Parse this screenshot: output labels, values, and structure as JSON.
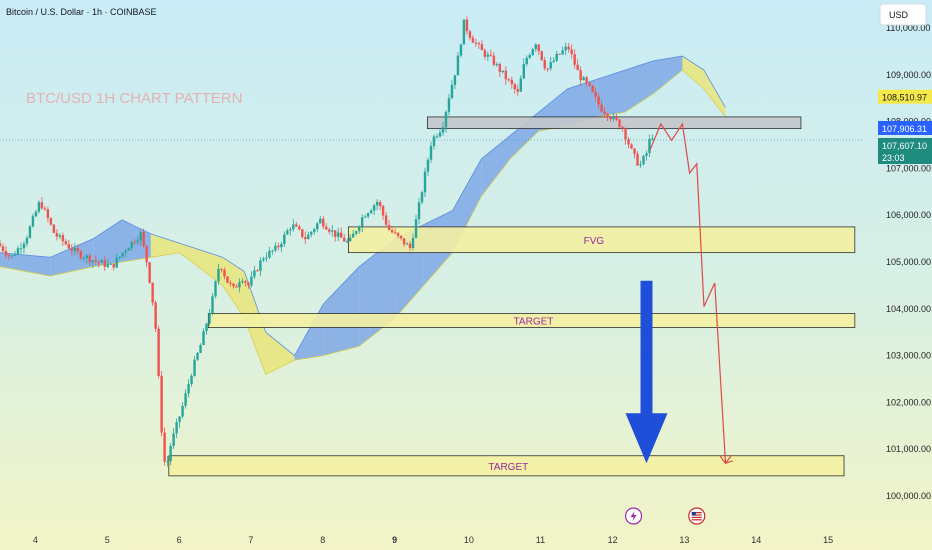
{
  "header": {
    "title": "Bitcoin / U.S. Dollar · 1h · COINBASE"
  },
  "currency_button": {
    "label": "USD"
  },
  "watermark": {
    "text": "BTC/USD 1H CHART PATTERN"
  },
  "colors": {
    "bull": "#26a69a",
    "bear": "#ef5350",
    "cloud_bull": "#7fa8e6",
    "cloud_bear": "#e9e57a",
    "arrow": "#1f4fd8",
    "projection": "#e0484a",
    "zone_fill": "#f4f1a3",
    "resistance_fill": "#c4c7cc",
    "badge_yellow": "#f5e94a",
    "badge_blue": "#2962ff",
    "badge_teal": "#1f8a7e"
  },
  "chart_data": {
    "type": "candlestick",
    "symbol": "BTC/USD",
    "timeframe": "1h",
    "exchange": "COINBASE",
    "ylim": [
      100000,
      110000
    ],
    "xlim": [
      3.5,
      15.5
    ],
    "x_ticks": [
      4,
      5,
      6,
      7,
      8,
      9,
      10,
      11,
      12,
      13,
      14,
      15
    ],
    "x_tick_labels": [
      "4",
      "5",
      "6",
      "7",
      "8",
      "9",
      "10",
      "11",
      "12",
      "13",
      "14",
      "15"
    ],
    "y_ticks": [
      100000,
      101000,
      102000,
      103000,
      104000,
      105000,
      106000,
      107000,
      108000,
      109000,
      110000
    ],
    "y_tick_labels": [
      "100,000.00",
      "101,000.00",
      "102,000.00",
      "103,000.00",
      "104,000.00",
      "105,000.00",
      "106,000.00",
      "107,000.00",
      "108,000.00",
      "109,000.00",
      "110,000.00"
    ],
    "price_path": [
      [
        3.5,
        105400
      ],
      [
        3.7,
        105100
      ],
      [
        3.9,
        105500
      ],
      [
        4.1,
        106300
      ],
      [
        4.3,
        105600
      ],
      [
        4.6,
        105200
      ],
      [
        4.9,
        105000
      ],
      [
        5.1,
        104900
      ],
      [
        5.3,
        105300
      ],
      [
        5.5,
        105600
      ],
      [
        5.6,
        104900
      ],
      [
        5.7,
        103800
      ],
      [
        5.75,
        102500
      ],
      [
        5.8,
        101200
      ],
      [
        5.85,
        100500
      ],
      [
        5.9,
        101000
      ],
      [
        6.0,
        101500
      ],
      [
        6.1,
        102000
      ],
      [
        6.2,
        102600
      ],
      [
        6.35,
        103300
      ],
      [
        6.5,
        104200
      ],
      [
        6.6,
        105000
      ],
      [
        6.7,
        104600
      ],
      [
        6.8,
        104400
      ],
      [
        6.9,
        104700
      ],
      [
        7.0,
        104500
      ],
      [
        7.2,
        105100
      ],
      [
        7.4,
        105300
      ],
      [
        7.6,
        105800
      ],
      [
        7.8,
        105500
      ],
      [
        8.0,
        105900
      ],
      [
        8.2,
        105600
      ],
      [
        8.4,
        105400
      ],
      [
        8.6,
        106000
      ],
      [
        8.8,
        106300
      ],
      [
        8.95,
        105700
      ],
      [
        9.1,
        105500
      ],
      [
        9.25,
        105300
      ],
      [
        9.35,
        106000
      ],
      [
        9.45,
        106800
      ],
      [
        9.55,
        107600
      ],
      [
        9.7,
        107900
      ],
      [
        9.8,
        108600
      ],
      [
        9.9,
        109200
      ],
      [
        10.0,
        110100
      ],
      [
        10.1,
        109800
      ],
      [
        10.25,
        109500
      ],
      [
        10.4,
        109300
      ],
      [
        10.6,
        108900
      ],
      [
        10.75,
        108600
      ],
      [
        10.85,
        109300
      ],
      [
        11.0,
        109700
      ],
      [
        11.15,
        109100
      ],
      [
        11.3,
        109400
      ],
      [
        11.45,
        109600
      ],
      [
        11.6,
        109000
      ],
      [
        11.75,
        108700
      ],
      [
        11.9,
        108300
      ],
      [
        12.05,
        108100
      ],
      [
        12.2,
        107900
      ],
      [
        12.35,
        107300
      ],
      [
        12.45,
        107050
      ],
      [
        12.55,
        107350
      ],
      [
        12.6,
        107700
      ]
    ],
    "cloud": {
      "top": [
        [
          3.5,
          105200
        ],
        [
          4.2,
          105100
        ],
        [
          4.8,
          105500
        ],
        [
          5.2,
          105900
        ],
        [
          5.6,
          105600
        ],
        [
          6.0,
          105400
        ],
        [
          6.6,
          105100
        ],
        [
          6.9,
          104800
        ],
        [
          7.2,
          103500
        ],
        [
          7.6,
          103000
        ],
        [
          8.0,
          104100
        ],
        [
          8.5,
          104900
        ],
        [
          9.0,
          105500
        ],
        [
          9.4,
          105800
        ],
        [
          9.8,
          106100
        ],
        [
          10.2,
          107200
        ],
        [
          10.6,
          107700
        ],
        [
          11.0,
          108200
        ],
        [
          11.4,
          108700
        ],
        [
          11.8,
          108900
        ],
        [
          12.2,
          109100
        ],
        [
          12.6,
          109300
        ],
        [
          13.0,
          109400
        ],
        [
          13.3,
          109100
        ],
        [
          13.6,
          108300
        ]
      ],
      "bottom": [
        [
          3.5,
          104900
        ],
        [
          4.2,
          104700
        ],
        [
          4.8,
          104900
        ],
        [
          5.2,
          105000
        ],
        [
          5.6,
          105100
        ],
        [
          6.0,
          105200
        ],
        [
          6.6,
          104500
        ],
        [
          6.9,
          103800
        ],
        [
          7.2,
          102600
        ],
        [
          7.6,
          102900
        ],
        [
          8.0,
          103000
        ],
        [
          8.5,
          103200
        ],
        [
          9.0,
          103800
        ],
        [
          9.4,
          104500
        ],
        [
          9.8,
          105200
        ],
        [
          10.2,
          106400
        ],
        [
          10.6,
          107200
        ],
        [
          11.0,
          107800
        ],
        [
          11.4,
          107900
        ],
        [
          11.8,
          108100
        ],
        [
          12.2,
          108200
        ],
        [
          12.6,
          108600
        ],
        [
          13.0,
          109100
        ],
        [
          13.3,
          108700
        ],
        [
          13.6,
          108100
        ]
      ]
    },
    "zones": [
      {
        "x_start": 9.45,
        "x_end": 14.65,
        "y_low": 107850,
        "y_high": 108100,
        "label": "",
        "fill": "resistance"
      },
      {
        "x_start": 8.35,
        "x_end": 15.4,
        "y_low": 105200,
        "y_high": 105750,
        "label": "FVG",
        "fill": "zone"
      },
      {
        "x_start": 6.4,
        "x_end": 15.4,
        "y_low": 103600,
        "y_high": 103900,
        "label": "TARGET",
        "fill": "zone"
      },
      {
        "x_start": 5.85,
        "x_end": 15.25,
        "y_low": 100430,
        "y_high": 100860,
        "label": "TARGET",
        "fill": "zone"
      }
    ],
    "projection_path": [
      [
        12.55,
        107400
      ],
      [
        12.7,
        107950
      ],
      [
        12.85,
        107600
      ],
      [
        13.0,
        107950
      ],
      [
        13.1,
        106900
      ],
      [
        13.2,
        107100
      ],
      [
        13.3,
        104050
      ],
      [
        13.45,
        104550
      ],
      [
        13.6,
        100700
      ],
      [
        13.7,
        100750
      ]
    ],
    "down_arrow": {
      "x": 12.5,
      "y_from": 104600,
      "y_to": 100700
    },
    "last_price_line": 107607.1,
    "price_badges": [
      {
        "price": 108510.97,
        "label": "108,510.97",
        "color": "yellow"
      },
      {
        "price": 107906.31,
        "label": "107,906.31",
        "color": "blue"
      },
      {
        "price": 107607.1,
        "label": "107,607.10",
        "sublabel": "23:03",
        "color": "teal"
      }
    ],
    "event_icons": [
      {
        "x": 12.32,
        "name": "lightning-event-icon"
      },
      {
        "x": 13.2,
        "name": "us-flag-event-icon"
      }
    ]
  }
}
